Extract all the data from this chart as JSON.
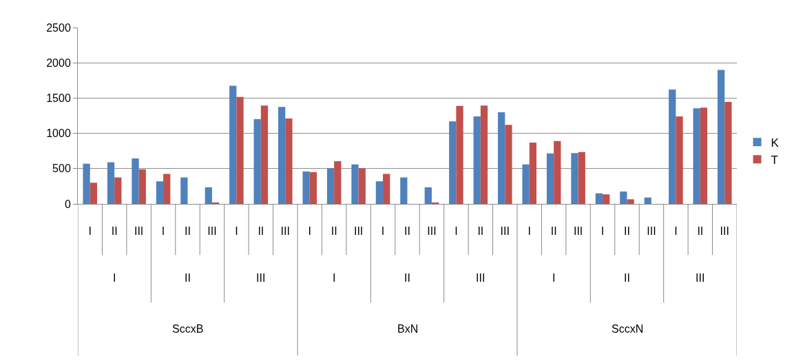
{
  "chart_data": {
    "type": "bar",
    "categories": [
      "I",
      "II",
      "III",
      "I",
      "II",
      "III",
      "I",
      "II",
      "III",
      "I",
      "II",
      "III",
      "I",
      "II",
      "III",
      "I",
      "II",
      "III",
      "I",
      "II",
      "III",
      "I",
      "II",
      "III",
      "I",
      "II",
      "III"
    ],
    "annotations": [
      "I",
      "II",
      "III",
      "I",
      "II",
      "III",
      "I",
      "II",
      "III",
      "SccxB",
      "BxN",
      "SccxN"
    ],
    "series": [
      {
        "name": "K",
        "color": "#4f81bd",
        "values": [
          570,
          590,
          645,
          320,
          375,
          235,
          1675,
          1200,
          1375,
          460,
          505,
          560,
          320,
          375,
          235,
          1170,
          1240,
          1300,
          560,
          715,
          720,
          150,
          175,
          90,
          1620,
          1355,
          1900
        ]
      },
      {
        "name": "T",
        "color": "#c0504d",
        "values": [
          300,
          375,
          490,
          425,
          null,
          20,
          1515,
          1395,
          1210,
          450,
          605,
          505,
          425,
          null,
          20,
          1390,
          1395,
          1120,
          870,
          890,
          735,
          135,
          65,
          null,
          1240,
          1365,
          1445
        ]
      }
    ],
    "ylim": [
      0,
      2500
    ],
    "yticks": [
      0,
      500,
      1000,
      1500,
      2000,
      2500
    ],
    "grid": "y",
    "legend": "right"
  }
}
